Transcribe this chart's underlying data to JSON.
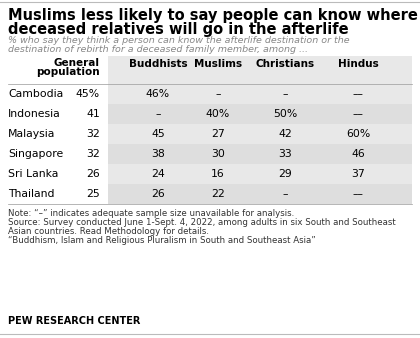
{
  "title_line1": "Muslims less likely to say people can know where",
  "title_line2": "deceased relatives will go in the afterlife",
  "subtitle_line1": "% who say they think a person can know the afterlife destination or the",
  "subtitle_line2": "destination of rebirth for a deceased family member, among ...",
  "col_headers": [
    "General\npopulation",
    "Buddhists",
    "Muslims",
    "Christians",
    "Hindus"
  ],
  "rows": [
    [
      "Cambodia",
      "45%",
      "46%",
      "–",
      "–",
      "––"
    ],
    [
      "Indonesia",
      "41",
      "–",
      "40%",
      "50%",
      "––"
    ],
    [
      "Malaysia",
      "32",
      "45",
      "27",
      "42",
      "60%"
    ],
    [
      "Singapore",
      "32",
      "38",
      "30",
      "33",
      "46"
    ],
    [
      "Sri Lanka",
      "26",
      "24",
      "16",
      "29",
      "37"
    ],
    [
      "Thailand",
      "25",
      "26",
      "22",
      "–",
      "––"
    ]
  ],
  "note1": "Note: “–” indicates adequate sample size unavailable for analysis.",
  "note2": "Source: Survey conducted June 1-Sept. 4, 2022, among adults in six South and Southeast",
  "note3": "Asian countries. Read Methodology for details.",
  "note4": "“Buddhism, Islam and Religious Pluralism in South and Southeast Asia”",
  "footer": "PEW RESEARCH CENTER",
  "shaded_bg": "#e8e8e8",
  "alt_row_bg": "#dedede",
  "title_fs": 10.5,
  "subtitle_fs": 6.8,
  "header_fs": 7.5,
  "cell_fs": 7.8,
  "note_fs": 6.2,
  "footer_fs": 7.0
}
